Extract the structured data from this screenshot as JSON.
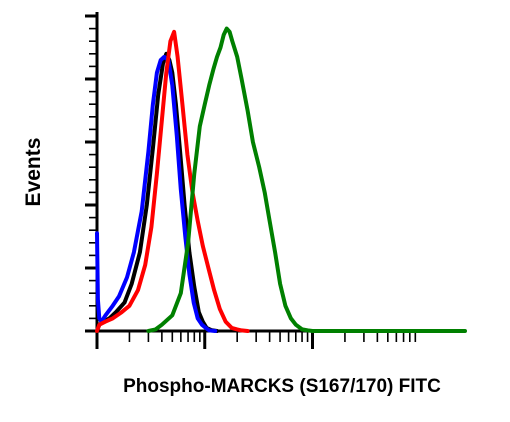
{
  "chart_data": {
    "type": "line",
    "title": "",
    "xlabel": "Phospho-MARCKS (S167/170) FITC",
    "ylabel": "Events",
    "x_scale": "log",
    "xlim": [
      1,
      10000
    ],
    "ylim": [
      0,
      100
    ],
    "grid": false,
    "legend": "none",
    "series": [
      {
        "color": "#000000",
        "x": [
          1,
          1.05,
          1.15,
          1.3,
          1.5,
          1.8,
          2.1,
          2.5,
          2.9,
          3.3,
          3.7,
          4.1,
          4.4,
          4.7,
          5.0,
          5.4,
          5.9,
          6.5,
          7.2,
          8.0,
          8.8,
          9.6,
          10.4,
          11.5,
          13
        ],
        "y": [
          0,
          2,
          3,
          4,
          6,
          9,
          15,
          25,
          40,
          58,
          75,
          85,
          88,
          86,
          82,
          72,
          57,
          40,
          25,
          14,
          6,
          3,
          1,
          0.3,
          0
        ]
      },
      {
        "color": "#0000ff",
        "x": [
          1,
          1.02,
          1.05,
          1.1,
          1.2,
          1.4,
          1.6,
          1.9,
          2.2,
          2.6,
          3.0,
          3.3,
          3.6,
          3.9,
          4.2,
          4.6,
          5.0,
          5.5,
          6.0,
          6.6,
          7.2,
          7.9,
          8.6,
          9.4,
          10.2,
          11,
          12.5
        ],
        "y": [
          31,
          10,
          4,
          3,
          5,
          8,
          11,
          17,
          25,
          38,
          57,
          72,
          82,
          86,
          87,
          86,
          78,
          62,
          45,
          30,
          18,
          9,
          4,
          2,
          1,
          0.2,
          0
        ]
      },
      {
        "color": "#ff0000",
        "x": [
          1,
          1.05,
          1.2,
          1.4,
          1.7,
          2.0,
          2.4,
          2.8,
          3.2,
          3.6,
          4.0,
          4.4,
          4.8,
          5.2,
          5.6,
          6.2,
          6.9,
          7.7,
          8.6,
          9.6,
          10.8,
          12.2,
          13.8,
          15.6,
          17.8,
          20,
          22,
          25
        ],
        "y": [
          0,
          2,
          3,
          4,
          6,
          8,
          13,
          21,
          33,
          50,
          67,
          82,
          92,
          95,
          87,
          72,
          56,
          44,
          35,
          27,
          20,
          13,
          7,
          3,
          1,
          0.5,
          0.2,
          0
        ]
      },
      {
        "color": "#008000",
        "x": [
          3,
          3.5,
          4,
          5,
          6,
          7,
          8,
          9,
          10,
          11,
          12,
          13,
          14,
          15,
          16,
          17,
          18,
          20,
          22,
          25,
          28,
          32,
          36,
          40,
          45,
          50,
          56,
          63,
          70,
          80,
          90,
          100,
          500,
          10000
        ],
        "y": [
          0,
          0.5,
          2,
          5,
          12,
          28,
          50,
          65,
          72,
          78,
          83,
          87,
          90,
          94,
          96,
          95,
          92,
          87,
          80,
          70,
          60,
          52,
          44,
          35,
          25,
          15,
          8,
          4,
          2,
          0.5,
          0.2,
          0,
          0,
          0
        ]
      }
    ]
  }
}
